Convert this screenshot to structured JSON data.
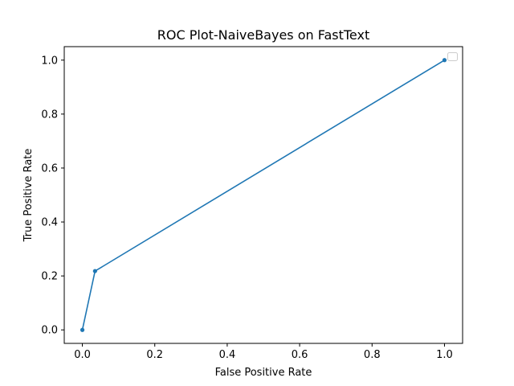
{
  "chart_data": {
    "type": "line",
    "title": "ROC Plot-NaiveBayes on FastText",
    "xlabel": "False Positive Rate",
    "ylabel": "True Positive Rate",
    "xlim": [
      -0.05,
      1.05
    ],
    "ylim": [
      -0.05,
      1.05
    ],
    "xticks": [
      0.0,
      0.2,
      0.4,
      0.6,
      0.8,
      1.0
    ],
    "xtick_labels": [
      "0.0",
      "0.2",
      "0.4",
      "0.6",
      "0.8",
      "1.0"
    ],
    "yticks": [
      0.0,
      0.2,
      0.4,
      0.6,
      0.8,
      1.0
    ],
    "ytick_labels": [
      "0.0",
      "0.2",
      "0.4",
      "0.6",
      "0.8",
      "1.0"
    ],
    "grid": false,
    "legend": {
      "placement": "top-right",
      "entries": []
    },
    "series": [
      {
        "name": "",
        "color": "#1f77b4",
        "marker": "dot",
        "x": [
          0.0,
          0.035,
          1.0
        ],
        "y": [
          0.0,
          0.218,
          1.0
        ]
      }
    ]
  }
}
